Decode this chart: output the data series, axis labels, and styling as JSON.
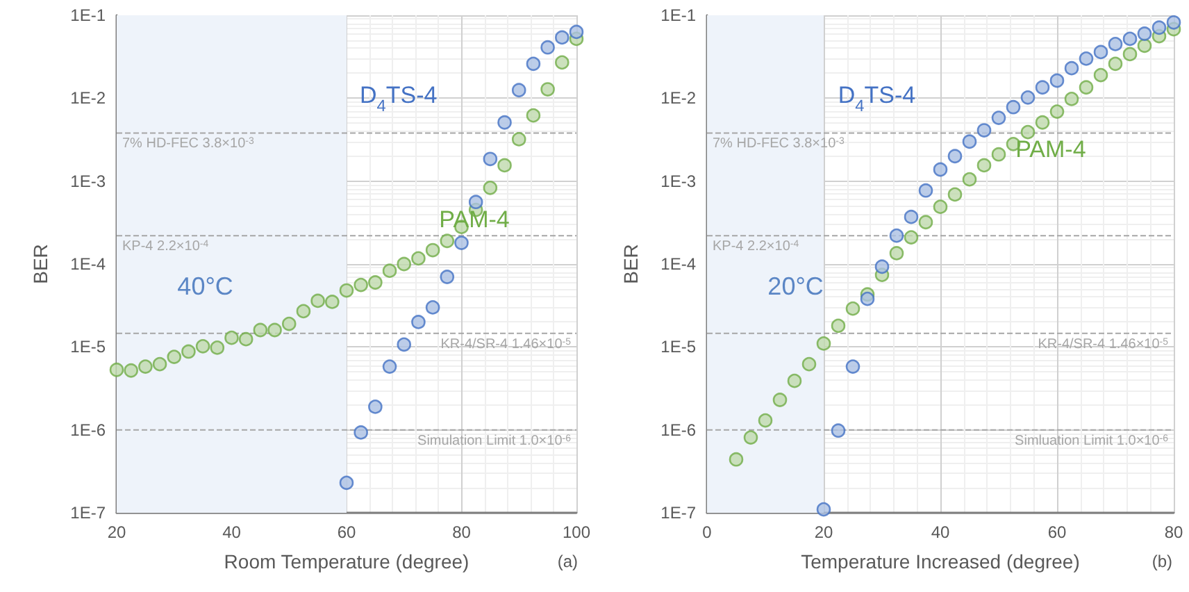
{
  "chart_data": [
    {
      "type": "scatter",
      "xlabel": "Room Temperature (degree)",
      "ylabel": "BER",
      "annotations": [
        "40°C",
        "(a)"
      ],
      "log": "y",
      "grid": true,
      "marker": "circle",
      "xlim": [
        20,
        100
      ],
      "xticks": [
        20,
        40,
        60,
        80,
        100
      ],
      "ylim": [
        1e-07,
        0.1
      ],
      "yticks": [
        {
          "value": 1e-07,
          "label": "1E-7"
        },
        {
          "value": 1e-06,
          "label": "1E-6"
        },
        {
          "value": 1e-05,
          "label": "1E-5"
        },
        {
          "value": 0.0001,
          "label": "1E-4"
        },
        {
          "value": 0.001,
          "label": "1E-3"
        },
        {
          "value": 0.01,
          "label": "1E-2"
        },
        {
          "value": 0.1,
          "label": "1E-1"
        }
      ],
      "series": [
        {
          "name": "D$_{4}$TS-4",
          "color": "#4472c4",
          "x": [
            60,
            62.5,
            65,
            67.5,
            70,
            72.5,
            75,
            77.5,
            80,
            82.5,
            85,
            87.5,
            90,
            92.5,
            95,
            97.5,
            100
          ],
          "values": [
            2.3e-07,
            9.3e-07,
            1.9e-06,
            5.8e-06,
            1.07e-05,
            2e-05,
            3e-05,
            7e-05,
            0.00018,
            0.00056,
            0.00185,
            0.0051,
            0.0125,
            0.026,
            0.041,
            0.054,
            0.063
          ]
        },
        {
          "name": "PAM-4",
          "color": "#70ad47",
          "x": [
            20,
            22.5,
            25,
            27.5,
            30,
            32.5,
            35,
            37.5,
            40,
            42.5,
            45,
            47.5,
            50,
            52.5,
            55,
            57.5,
            60,
            62.5,
            65,
            67.5,
            70,
            72.5,
            75,
            77.5,
            80,
            82.5,
            85,
            87.5,
            90,
            92.5,
            95,
            97.5,
            100
          ],
          "values": [
            5.3e-06,
            5.2e-06,
            5.8e-06,
            6.2e-06,
            7.6e-06,
            8.8e-06,
            1.02e-05,
            9.8e-06,
            1.29e-05,
            1.24e-05,
            1.6e-05,
            1.6e-05,
            1.9e-05,
            2.7e-05,
            3.6e-05,
            3.5e-05,
            4.8e-05,
            5.6e-05,
            6e-05,
            8.3e-05,
            0.0001,
            0.000117,
            0.000147,
            0.00019,
            0.00028,
            0.00045,
            0.00083,
            0.00155,
            0.0032,
            0.0062,
            0.0128,
            0.027,
            0.052
          ]
        }
      ],
      "ref_lines": [
        {
          "axis": "y",
          "value": 0.0038,
          "label": "7% HD-FEC 3.8×10$^{-3}$",
          "color": "#a6a6a6",
          "line_style": "dashed"
        },
        {
          "axis": "y",
          "value": 0.00022,
          "label": "KP-4 2.2×10$^{-4}$",
          "color": "#a6a6a6",
          "line_style": "dashed"
        },
        {
          "axis": "y",
          "value": 1.46e-05,
          "label": "KR-4/SR-4 1.46×10$^{-5}$",
          "color": "#a6a6a6",
          "line_style": "dashed"
        },
        {
          "axis": "y",
          "value": 1e-06,
          "label": "Simulation Limit 1.0×10$^{-6}$",
          "color": "#a6a6a6",
          "line_style": "dashed"
        }
      ],
      "bands": [
        {
          "axis": "x",
          "from": 20,
          "to": 60,
          "color": "#eef3fa"
        }
      ]
    },
    {
      "type": "scatter",
      "xlabel": "Temperature Increased (degree)",
      "ylabel": "BER",
      "annotations": [
        "20°C",
        "(b)"
      ],
      "log": "y",
      "grid": true,
      "marker": "circle",
      "xlim": [
        0,
        80
      ],
      "xticks": [
        0,
        20,
        40,
        60,
        80
      ],
      "ylim": [
        1e-07,
        0.1
      ],
      "yticks": [
        {
          "value": 1e-07,
          "label": "1E-7"
        },
        {
          "value": 1e-06,
          "label": "1E-6"
        },
        {
          "value": 1e-05,
          "label": "1E-5"
        },
        {
          "value": 0.0001,
          "label": "1E-4"
        },
        {
          "value": 0.001,
          "label": "1E-3"
        },
        {
          "value": 0.01,
          "label": "1E-2"
        },
        {
          "value": 0.1,
          "label": "1E-1"
        }
      ],
      "series": [
        {
          "name": "D$_{4}$TS-4",
          "color": "#4472c4",
          "x": [
            20,
            22.5,
            25,
            27.5,
            30,
            32.5,
            35,
            37.5,
            40,
            42.5,
            45,
            47.5,
            50,
            52.5,
            55,
            57.5,
            60,
            62.5,
            65,
            67.5,
            70,
            72.5,
            75,
            77.5,
            80
          ],
          "values": [
            1.1e-07,
            9.8e-07,
            5.8e-06,
            3.8e-05,
            9.3e-05,
            0.00022,
            0.00037,
            0.00077,
            0.00138,
            0.002,
            0.003,
            0.0041,
            0.0058,
            0.0078,
            0.0102,
            0.0135,
            0.0163,
            0.023,
            0.03,
            0.036,
            0.045,
            0.052,
            0.06,
            0.071,
            0.082
          ]
        },
        {
          "name": "PAM-4",
          "color": "#70ad47",
          "x": [
            5,
            7.5,
            10,
            12.5,
            15,
            17.5,
            20,
            22.5,
            25,
            27.5,
            30,
            32.5,
            35,
            37.5,
            40,
            42.5,
            45,
            47.5,
            50,
            52.5,
            55,
            57.5,
            60,
            62.5,
            65,
            67.5,
            70,
            72.5,
            75,
            77.5,
            80
          ],
          "values": [
            4.4e-07,
            8.1e-07,
            1.3e-06,
            2.3e-06,
            3.9e-06,
            6.2e-06,
            1.1e-05,
            1.8e-05,
            2.9e-05,
            4.3e-05,
            7.4e-05,
            0.000135,
            0.00021,
            0.00032,
            0.00049,
            0.00069,
            0.00105,
            0.00155,
            0.0021,
            0.0028,
            0.0039,
            0.0051,
            0.0069,
            0.0098,
            0.0135,
            0.019,
            0.026,
            0.034,
            0.043,
            0.056,
            0.068
          ]
        }
      ],
      "ref_lines": [
        {
          "axis": "y",
          "value": 0.0038,
          "label": "7% HD-FEC 3.8×10$^{-3}$",
          "color": "#a6a6a6",
          "line_style": "dashed"
        },
        {
          "axis": "y",
          "value": 0.00022,
          "label": "KP-4 2.2×10$^{-4}$",
          "color": "#a6a6a6",
          "line_style": "dashed"
        },
        {
          "axis": "y",
          "value": 1.46e-05,
          "label": "KR-4/SR-4 1.46×10$^{-5}$",
          "color": "#a6a6a6",
          "line_style": "dashed"
        },
        {
          "axis": "y",
          "value": 1e-06,
          "label": "Simluation Limit 1.0×10$^{-6}$",
          "color": "#a6a6a6",
          "line_style": "dashed"
        }
      ],
      "bands": [
        {
          "axis": "x",
          "from": 0,
          "to": 20,
          "color": "#eef3fa"
        }
      ]
    }
  ]
}
